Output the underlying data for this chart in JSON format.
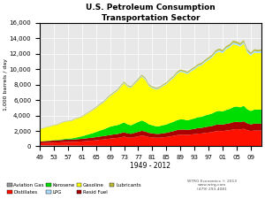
{
  "title": "U.S. Petroleum Consumption",
  "subtitle": "Transportation Sector",
  "xlabel": "1949 - 2012",
  "ylabel": "1,000 barrels / day",
  "years": [
    1949,
    1950,
    1951,
    1952,
    1953,
    1954,
    1955,
    1956,
    1957,
    1958,
    1959,
    1960,
    1961,
    1962,
    1963,
    1964,
    1965,
    1966,
    1967,
    1968,
    1969,
    1970,
    1971,
    1972,
    1973,
    1974,
    1975,
    1976,
    1977,
    1978,
    1979,
    1980,
    1981,
    1982,
    1983,
    1984,
    1985,
    1986,
    1987,
    1988,
    1989,
    1990,
    1991,
    1992,
    1993,
    1994,
    1995,
    1996,
    1997,
    1998,
    1999,
    2000,
    2001,
    2002,
    2003,
    2004,
    2005,
    2006,
    2007,
    2008,
    2009,
    2010,
    2011,
    2012
  ],
  "aviation_gas": [
    130,
    130,
    125,
    120,
    118,
    112,
    110,
    108,
    105,
    100,
    97,
    93,
    90,
    86,
    82,
    79,
    76,
    72,
    68,
    65,
    62,
    59,
    56,
    53,
    50,
    48,
    45,
    43,
    41,
    38,
    36,
    33,
    30,
    27,
    25,
    23,
    21,
    19,
    17,
    15,
    14,
    13,
    12,
    11,
    10,
    9,
    8,
    8,
    7,
    6,
    6,
    5,
    5,
    4,
    4,
    4,
    3,
    3,
    3,
    2,
    2,
    2,
    2,
    2
  ],
  "distillates": [
    280,
    300,
    330,
    350,
    380,
    390,
    420,
    450,
    470,
    460,
    490,
    520,
    550,
    590,
    630,
    670,
    720,
    780,
    820,
    880,
    940,
    990,
    1030,
    1110,
    1220,
    1100,
    1070,
    1170,
    1260,
    1360,
    1300,
    1180,
    1140,
    1090,
    1090,
    1140,
    1190,
    1270,
    1340,
    1440,
    1490,
    1510,
    1470,
    1520,
    1570,
    1640,
    1660,
    1730,
    1780,
    1840,
    1940,
    1990,
    1970,
    2040,
    2090,
    2190,
    2230,
    2190,
    2270,
    2090,
    1990,
    2040,
    2040,
    2040
  ],
  "resid_fuel": [
    200,
    215,
    230,
    245,
    260,
    265,
    280,
    295,
    300,
    305,
    315,
    325,
    335,
    350,
    365,
    380,
    395,
    415,
    430,
    450,
    470,
    490,
    505,
    535,
    560,
    520,
    510,
    545,
    580,
    610,
    590,
    540,
    520,
    500,
    505,
    525,
    540,
    575,
    605,
    650,
    670,
    660,
    640,
    665,
    685,
    715,
    725,
    755,
    775,
    795,
    835,
    850,
    840,
    870,
    895,
    935,
    955,
    935,
    970,
    890,
    855,
    890,
    890,
    895
  ],
  "kerosene": [
    30,
    35,
    40,
    45,
    55,
    65,
    80,
    100,
    130,
    160,
    200,
    260,
    330,
    410,
    490,
    570,
    660,
    760,
    850,
    960,
    1070,
    1120,
    1150,
    1210,
    1270,
    1160,
    1110,
    1200,
    1280,
    1340,
    1240,
    1100,
    1040,
    980,
    990,
    1040,
    1080,
    1150,
    1210,
    1290,
    1320,
    1290,
    1240,
    1300,
    1350,
    1410,
    1430,
    1510,
    1560,
    1610,
    1700,
    1750,
    1710,
    1800,
    1850,
    1940,
    1980,
    1920,
    2010,
    1820,
    1740,
    1820,
    1830,
    1840
  ],
  "lpg": [
    20,
    22,
    25,
    27,
    30,
    32,
    35,
    38,
    40,
    42,
    45,
    48,
    52,
    56,
    60,
    65,
    70,
    75,
    80,
    85,
    90,
    95,
    100,
    110,
    120,
    115,
    110,
    120,
    130,
    140,
    135,
    125,
    120,
    115,
    115,
    120,
    125,
    135,
    145,
    155,
    160,
    158,
    152,
    158,
    164,
    172,
    175,
    183,
    189,
    195,
    207,
    212,
    208,
    216,
    223,
    234,
    239,
    233,
    243,
    221,
    211,
    220,
    222,
    224
  ],
  "gasoline": [
    1550,
    1650,
    1750,
    1800,
    1900,
    1950,
    2100,
    2200,
    2230,
    2250,
    2400,
    2450,
    2500,
    2650,
    2800,
    2950,
    3100,
    3300,
    3450,
    3700,
    3950,
    4150,
    4400,
    4750,
    5050,
    4850,
    4850,
    5100,
    5350,
    5650,
    5450,
    4950,
    4800,
    4750,
    4850,
    5050,
    5200,
    5450,
    5650,
    5950,
    6150,
    6050,
    6000,
    6200,
    6350,
    6550,
    6650,
    6850,
    7050,
    7250,
    7550,
    7650,
    7550,
    7850,
    7950,
    8150,
    7950,
    7850,
    8050,
    7350,
    7150,
    7400,
    7300,
    7350
  ],
  "lubricants": [
    25,
    27,
    30,
    32,
    35,
    37,
    40,
    43,
    45,
    47,
    50,
    53,
    57,
    61,
    65,
    70,
    75,
    80,
    85,
    90,
    96,
    101,
    105,
    114,
    122,
    113,
    110,
    119,
    128,
    137,
    130,
    118,
    114,
    110,
    111,
    116,
    120,
    128,
    136,
    146,
    151,
    148,
    143,
    149,
    155,
    162,
    165,
    171,
    177,
    182,
    192,
    196,
    194,
    201,
    207,
    217,
    222,
    217,
    226,
    206,
    198,
    206,
    206,
    207
  ],
  "ylim": [
    0,
    16000
  ],
  "yticks": [
    0,
    2000,
    4000,
    6000,
    8000,
    10000,
    12000,
    14000,
    16000
  ],
  "colors": {
    "aviation_gas": "#999999",
    "distillates": "#ff1100",
    "kerosene": "#00dd00",
    "lpg": "#aaddff",
    "gasoline": "#ffff00",
    "resid_fuel": "#aa0000",
    "lubricants": "#bbbb33"
  },
  "watermark_line1": "WTRG Economics © 2013",
  "watermark_line2": "www.wtrg.com",
  "watermark_line3": "(479) 293-4081",
  "bg_color": "#e8e8e8",
  "grid_color": "#ffffff"
}
